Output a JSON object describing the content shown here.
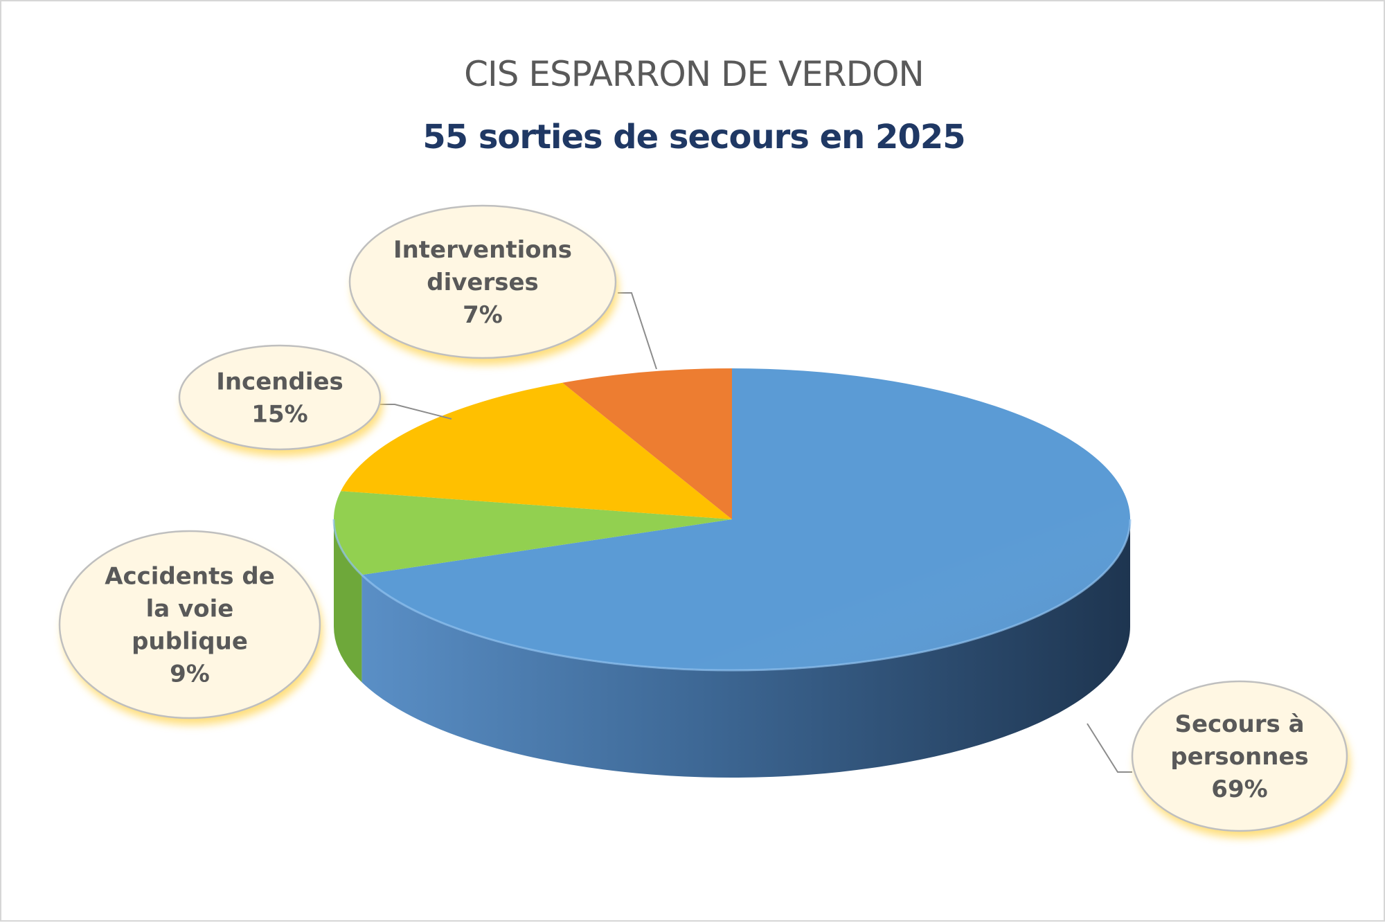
{
  "chart_data": {
    "type": "pie",
    "title": "CIS ESPARRON DE VERDON",
    "subtitle": "55 sorties de secours en 2025",
    "slices": [
      {
        "label_lines": [
          "Secours à",
          "personnes"
        ],
        "value_label": "69%",
        "value": 69,
        "color": "#5b9bd5",
        "side_color": "#3a6a9a"
      },
      {
        "label_lines": [
          "Accidents de",
          "la voie",
          "publique"
        ],
        "value_label": "9%",
        "value": 9,
        "color": "#92d050",
        "side_color": "#6ea83a"
      },
      {
        "label_lines": [
          "Incendies"
        ],
        "value_label": "15%",
        "value": 15,
        "color": "#ffc000",
        "side_color": "#c89600"
      },
      {
        "label_lines": [
          "Interventions",
          "diverses"
        ],
        "value_label": "7%",
        "value": 7,
        "color": "#ed7d31",
        "side_color": "#b85f24"
      }
    ],
    "callout_fill": "#fff7e3",
    "callout_glow": "#ffd966",
    "legend": "none"
  }
}
